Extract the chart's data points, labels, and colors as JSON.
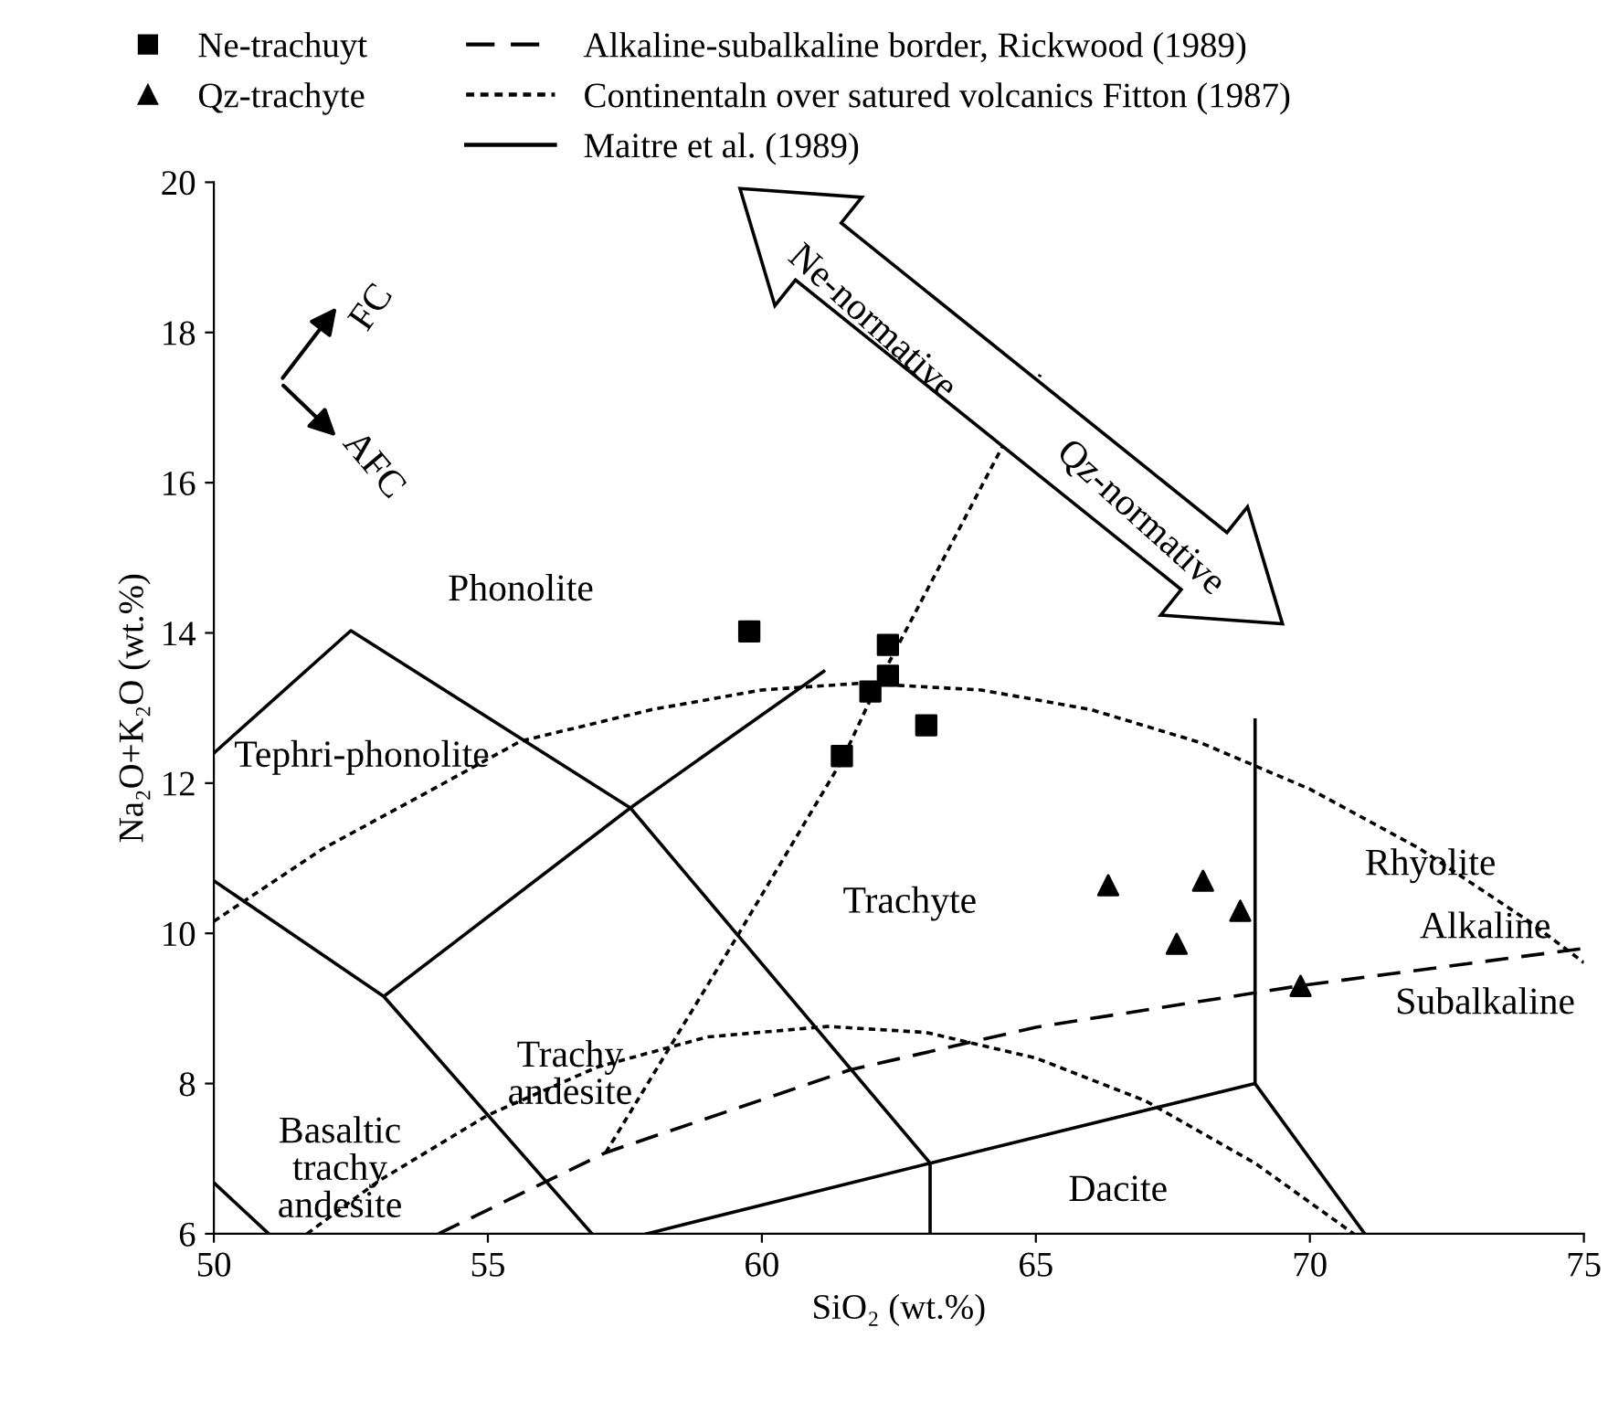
{
  "chart_data": {
    "type": "scatter",
    "xlabel": "SiO₂ (wt.%)",
    "ylabel": "Na₂O+K₂O (wt.%)",
    "xlim": [
      50,
      75
    ],
    "ylim": [
      6,
      20
    ],
    "xticks": [
      50,
      55,
      60,
      65,
      70,
      75
    ],
    "yticks": [
      6,
      8,
      10,
      12,
      14,
      16,
      18,
      20
    ],
    "grid": false,
    "legend": "top",
    "series": [
      {
        "name": "Ne-trachuyt",
        "marker": "square",
        "color": "#000000",
        "x": [
          59.77,
          62.3,
          62.3,
          61.98,
          63.0,
          61.46
        ],
        "values": [
          14.02,
          13.84,
          13.43,
          13.22,
          12.77,
          12.36
        ]
      },
      {
        "name": "Qz-trachyte",
        "marker": "triangle",
        "color": "#000000",
        "x": [
          66.32,
          68.05,
          68.73,
          67.57,
          69.83
        ],
        "values": [
          10.64,
          10.7,
          10.3,
          9.86,
          9.3
        ]
      },
      {
        "name": "Alkaline-subalkaline border, Rickwood (1989)",
        "type": "line",
        "line_style": "dashed",
        "color": "#000000",
        "x": [
          54.1,
          57.15,
          61.6,
          65,
          69.8,
          75
        ],
        "values": [
          6,
          7.08,
          8.18,
          8.75,
          9.3,
          9.8
        ]
      },
      {
        "name": "Continentaln over satured volcanics Fitton (1987)",
        "type": "line",
        "line_style": "dotted",
        "color": "#000000",
        "x": [
          50,
          52,
          54,
          55.6,
          58,
          60,
          61.8,
          64,
          66,
          68,
          70,
          72,
          74,
          75,
          null,
          51.7,
          53,
          55,
          57,
          59,
          61.2,
          63,
          65,
          67,
          69,
          70.8,
          null,
          57.15,
          59.5,
          61.46,
          62.1,
          65.08
        ],
        "values": [
          10.16,
          11.13,
          11.92,
          12.56,
          12.98,
          13.24,
          13.33,
          13.24,
          12.98,
          12.54,
          11.92,
          11.13,
          10.16,
          9.61,
          null,
          6,
          6.7,
          7.58,
          8.22,
          8.62,
          8.76,
          8.68,
          8.34,
          7.77,
          6.94,
          6,
          null,
          7.08,
          9.9,
          12.3,
          13.3,
          17.44
        ]
      },
      {
        "name": "Maitre et al. (1989)",
        "type": "line",
        "line_style": "solid",
        "color": "#000000",
        "x": [
          50,
          52.5,
          57.6,
          63.07,
          63.07,
          null,
          57.9,
          63.07,
          69,
          71,
          null,
          69,
          69,
          null,
          53.1,
          57.6,
          61.13,
          null,
          50,
          53.1,
          56.9,
          null,
          50,
          51
        ],
        "values": [
          12.4,
          14.03,
          11.67,
          6.94,
          6,
          null,
          6,
          6.94,
          8,
          6,
          null,
          8,
          12.84,
          null,
          9.16,
          11.67,
          13.49,
          null,
          10.7,
          9.16,
          6,
          null,
          6.68,
          6
        ]
      }
    ],
    "annotations": [
      "Phonolite",
      "Tephri-phonolite",
      "Trachyte",
      "Trachy\nandesite",
      "Basaltic\ntrachy\nandesite",
      "Dacite",
      "Rhyolite",
      "Alkaline",
      "Subalkaline",
      "FC",
      "AFC",
      "Ne-normative",
      "Qz-normative"
    ]
  }
}
